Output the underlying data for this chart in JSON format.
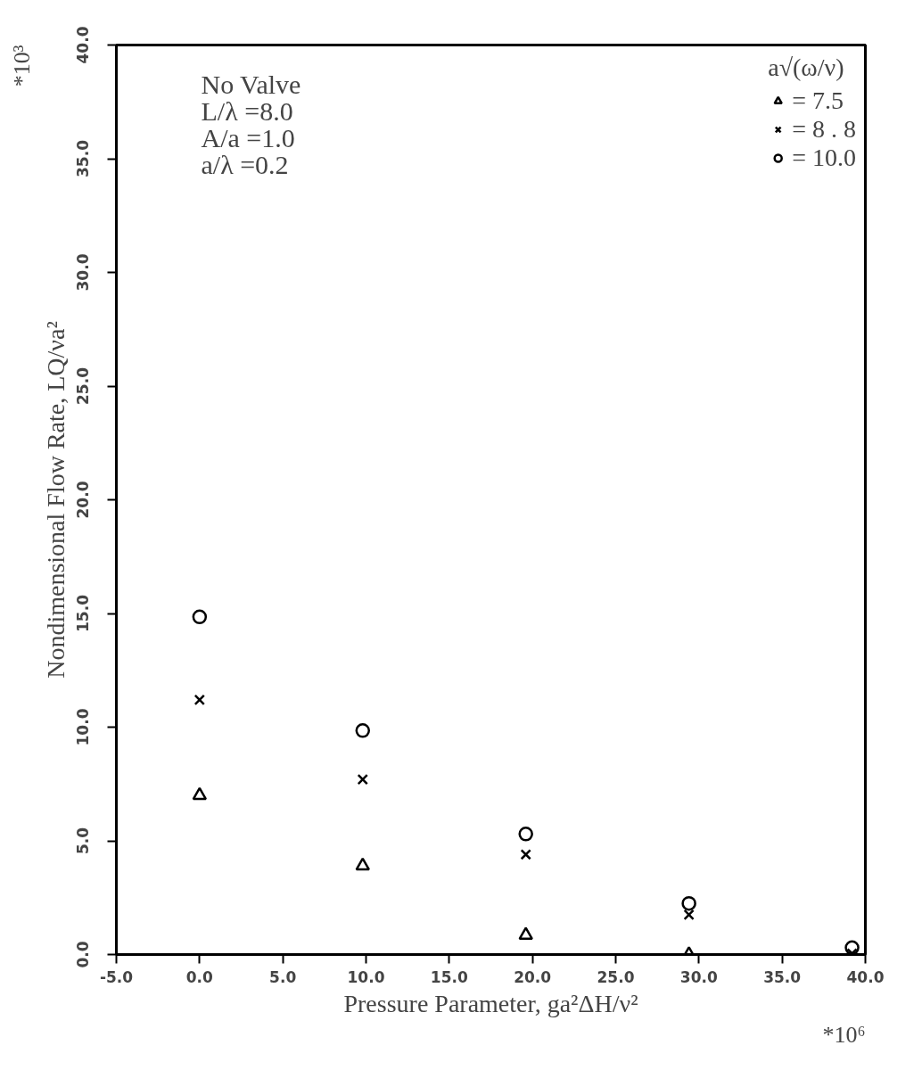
{
  "chart_data": {
    "type": "scatter",
    "xlabel": "Pressure Parameter, ga²ΔH/ν²",
    "ylabel": "Nondimensional Flow Rate, LQ/νa²",
    "legend_title": "a√(ω/ν)",
    "legend": "top right",
    "grid": false,
    "x": [
      0,
      9.8,
      19.6,
      29.4,
      39.2
    ],
    "series": [
      {
        "name": "= 7.5",
        "color": "#000000",
        "marker": "triangle",
        "values": [
          7.0,
          3.9,
          0.85,
          0.0,
          null
        ]
      },
      {
        "name": "= 8 . 8",
        "color": "#000000",
        "marker": "cross",
        "values": [
          11.2,
          7.7,
          4.4,
          1.75,
          0.05
        ]
      },
      {
        "name": "= 10.0",
        "color": "#000000",
        "marker": "circle",
        "values": [
          14.85,
          9.85,
          5.3,
          2.25,
          0.3
        ]
      }
    ],
    "xlim": [
      -5,
      40
    ],
    "ylim": [
      0,
      40
    ],
    "xticks": [
      {
        "value": -5,
        "label": "-5.0"
      },
      {
        "value": 0,
        "label": "0.0"
      },
      {
        "value": 5,
        "label": "5.0"
      },
      {
        "value": 10,
        "label": "10.0"
      },
      {
        "value": 15,
        "label": "15.0"
      },
      {
        "value": 20,
        "label": "20.0"
      },
      {
        "value": 25,
        "label": "25.0"
      },
      {
        "value": 30,
        "label": "30.0"
      },
      {
        "value": 35,
        "label": "35.0"
      },
      {
        "value": 40,
        "label": "40.0"
      }
    ],
    "yticks": [
      {
        "value": 0,
        "label": "0.0"
      },
      {
        "value": 5,
        "label": "5.0"
      },
      {
        "value": 10,
        "label": "10.0"
      },
      {
        "value": 15,
        "label": "15.0"
      },
      {
        "value": 20,
        "label": "20.0"
      },
      {
        "value": 25,
        "label": "25.0"
      },
      {
        "value": 30,
        "label": "30.0"
      },
      {
        "value": 35,
        "label": "35.0"
      },
      {
        "value": 40,
        "label": "40.0"
      }
    ],
    "annotations": [
      "No Valve",
      "L/λ =8.0",
      "A/a =1.0",
      "a/λ  =0.2",
      "*10⁶",
      "*10³"
    ]
  }
}
